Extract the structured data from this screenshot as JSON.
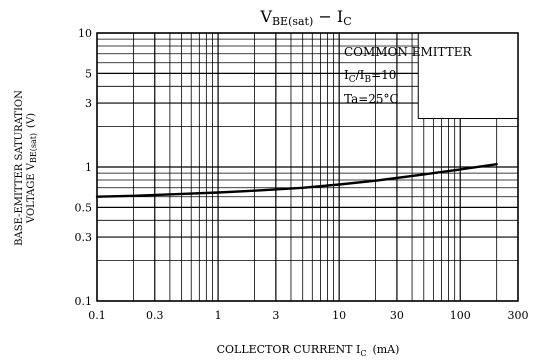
{
  "chart_data": {
    "type": "line",
    "title": "V",
    "title_sub": "BE(sat)",
    "title_rest": " − I",
    "title_rest_sub": "C",
    "xlabel": "COLLECTOR CURRENT  I",
    "xlabel_sub": "C",
    "xlabel_unit": "(mA)",
    "ylabel_line1": "BASE-EMITTER SATURATION",
    "ylabel_line2": "VOLTAGE  V",
    "ylabel_line2_sub": "BE(sat)",
    "ylabel_line2_unit": "(V)",
    "x_scale": "log",
    "y_scale": "log",
    "xlim": [
      0.1,
      300
    ],
    "ylim": [
      0.1,
      10
    ],
    "x_ticks": [
      {
        "value": 0.1,
        "label": "0.1"
      },
      {
        "value": 0.3,
        "label": "0.3"
      },
      {
        "value": 1,
        "label": "1"
      },
      {
        "value": 3,
        "label": "3"
      },
      {
        "value": 10,
        "label": "10"
      },
      {
        "value": 30,
        "label": "30"
      },
      {
        "value": 100,
        "label": "100"
      },
      {
        "value": 300,
        "label": "300"
      }
    ],
    "y_ticks": [
      {
        "value": 0.1,
        "label": "0.1"
      },
      {
        "value": 0.3,
        "label": "0.3"
      },
      {
        "value": 0.5,
        "label": "0.5"
      },
      {
        "value": 1,
        "label": "1"
      },
      {
        "value": 3,
        "label": "3"
      },
      {
        "value": 5,
        "label": "5"
      },
      {
        "value": 10,
        "label": "10"
      }
    ],
    "grid": true,
    "annotations": [
      {
        "text": "COMMON EMITTER"
      },
      {
        "text": "I",
        "sub": "C",
        "text2": "/I",
        "sub2": "B",
        "text3": "=10"
      },
      {
        "text": "Ta=25°C"
      }
    ],
    "series": [
      {
        "x": [
          0.1,
          0.2,
          0.5,
          1,
          2,
          5,
          10,
          20,
          50,
          100,
          200
        ],
        "y": [
          0.6,
          0.61,
          0.63,
          0.645,
          0.665,
          0.7,
          0.74,
          0.79,
          0.88,
          0.96,
          1.05
        ]
      }
    ]
  }
}
